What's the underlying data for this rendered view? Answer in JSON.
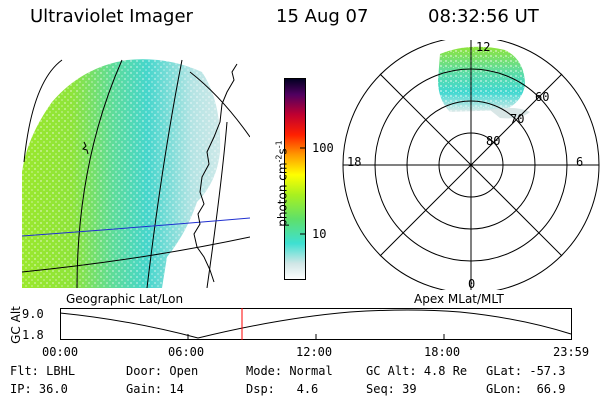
{
  "header": {
    "title": "Ultraviolet Imager",
    "date": "15 Aug 07",
    "time": "08:32:56 UT"
  },
  "colorbar": {
    "label": "photon cm",
    "label_exp": "-2",
    "label_mid": "s",
    "label_exp2": "-1",
    "ticks": [
      {
        "label": "100",
        "value": 100
      },
      {
        "label": "10",
        "value": 10
      }
    ],
    "scale": "log",
    "colors": [
      "#ffffff",
      "#d8e8e8",
      "#40e0d0",
      "#80ff40",
      "#ffff00",
      "#ff8000",
      "#ff0000",
      "#c00040",
      "#400060",
      "#000020"
    ]
  },
  "geo_panel": {
    "caption": "Geographic Lat/Lon"
  },
  "polar_panel": {
    "caption": "Apex MLat/MLT",
    "lat_labels": [
      "80",
      "70",
      "60"
    ],
    "mlt_labels": {
      "top": "12",
      "left": "18",
      "right": "6",
      "bottom": "0"
    }
  },
  "alt_plot": {
    "ylabel": "GC Alt",
    "yticks": [
      "9.0",
      "1.8"
    ],
    "xticks": [
      "00:00",
      "06:00",
      "12:00",
      "18:00",
      "23:59"
    ],
    "marker_color": "#ff0000"
  },
  "info": {
    "row1": [
      {
        "key": "Flt:",
        "val": "LBHL"
      },
      {
        "key": "Door:",
        "val": "Open"
      },
      {
        "key": "Mode:",
        "val": "Normal"
      },
      {
        "key": "GC Alt:",
        "val": "4.8 Re"
      },
      {
        "key": "GLat:",
        "val": "-57.3"
      }
    ],
    "row2": [
      {
        "key": "IP:",
        "val": "36.0"
      },
      {
        "key": "Gain:",
        "val": "14"
      },
      {
        "key": "Dsp:",
        "val": "4.6"
      },
      {
        "key": "Seq:",
        "val": "39"
      },
      {
        "key": "GLon:",
        "val": "66.9"
      }
    ]
  }
}
